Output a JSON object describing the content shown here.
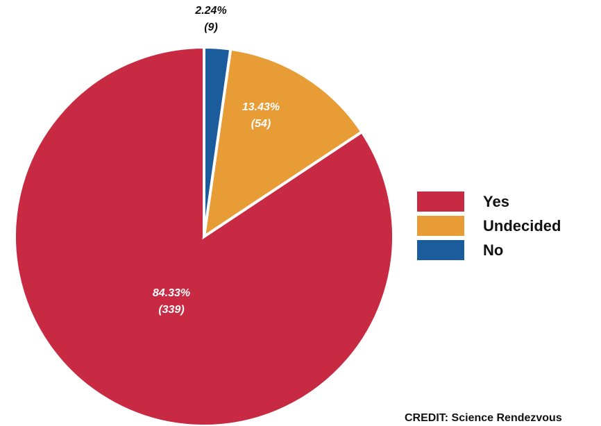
{
  "chart_data": {
    "type": "pie",
    "title": "",
    "categories": [
      "Yes",
      "Undecided",
      "No"
    ],
    "values": [
      339,
      54,
      9
    ],
    "percent_labels": [
      "84.33%",
      "13.43%",
      "2.24%"
    ],
    "count_labels": [
      "(339)",
      "(54)",
      "(9)"
    ],
    "colors": [
      "#C72A42",
      "#E89C35",
      "#1A5C9C"
    ],
    "label_colors": [
      "#ffffff",
      "#ffffff",
      "#111111"
    ],
    "legend_placement": "right",
    "start_angle_deg": 0,
    "direction": "counterclockwise-from-top"
  },
  "legend": {
    "items": [
      {
        "label": "Yes",
        "color": "#C72A42"
      },
      {
        "label": "Undecided",
        "color": "#E89C35"
      },
      {
        "label": "No",
        "color": "#1A5C9C"
      }
    ]
  },
  "credit": "CREDIT: Science Rendezvous"
}
